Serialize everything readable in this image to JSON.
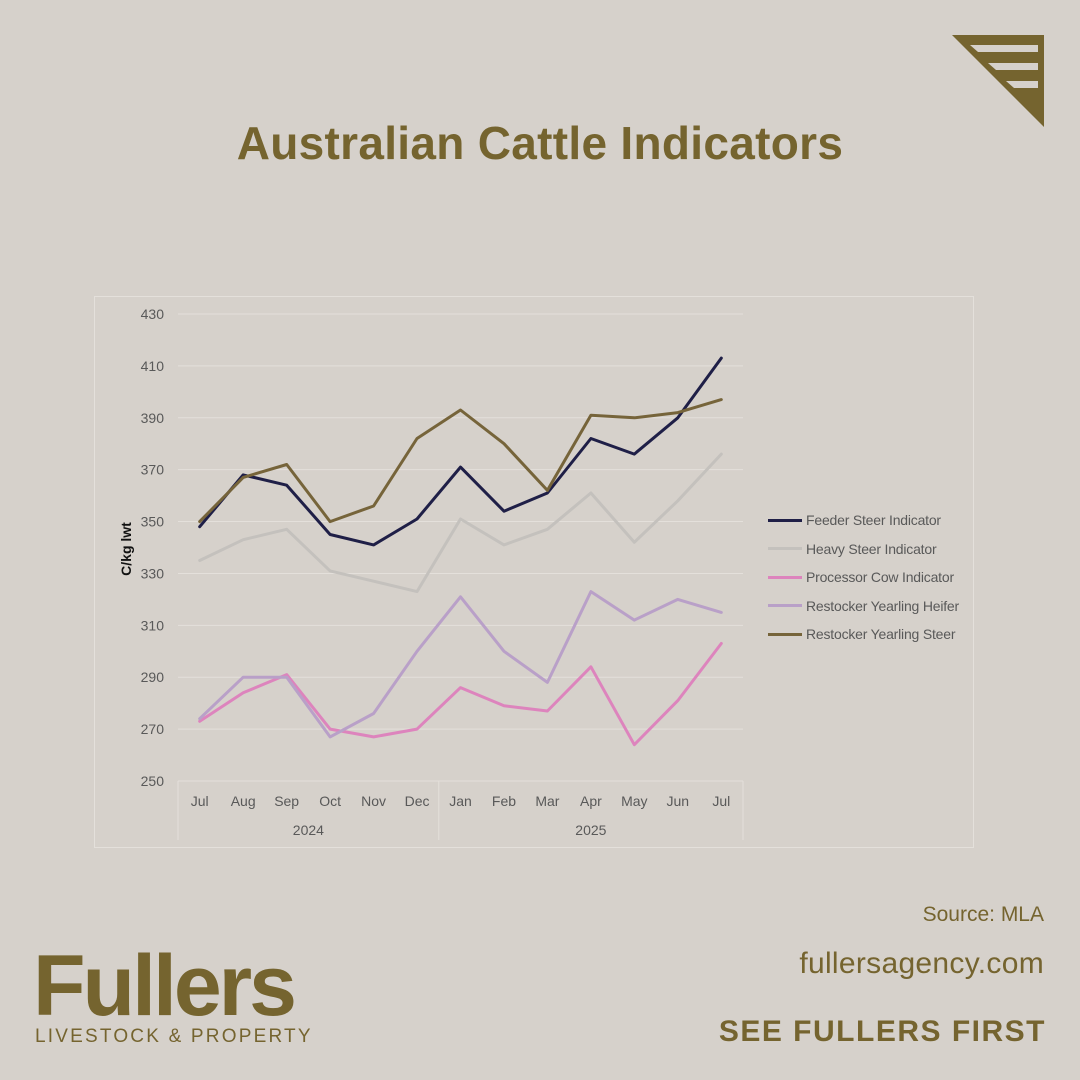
{
  "header": {
    "title": "Australian Cattle Indicators"
  },
  "footer": {
    "source": "Source: MLA",
    "website": "fullersagency.com",
    "tagline": "SEE FULLERS FIRST",
    "brand_name": "Fullers",
    "brand_subtitle": "LIVESTOCK & PROPERTY"
  },
  "colors": {
    "background": "#d6d1cb",
    "brand": "#75642f"
  },
  "chart_data": {
    "type": "line",
    "title": "",
    "xlabel": "",
    "ylabel": "C/kg  lwt",
    "ylim": [
      250,
      430
    ],
    "yticks": [
      "250",
      "270",
      "290",
      "310",
      "330",
      "350",
      "370",
      "390",
      "410",
      "430"
    ],
    "categories": [
      "Jul",
      "Aug",
      "Sep",
      "Oct",
      "Nov",
      "Dec",
      "Jan",
      "Feb",
      "Mar",
      "Apr",
      "May",
      "Jun",
      "Jul"
    ],
    "year_groups": [
      {
        "label": "2024",
        "span": 6
      },
      {
        "label": "2025",
        "span": 7
      }
    ],
    "grid": true,
    "legend_position": "right",
    "series": [
      {
        "name": "Feeder Steer Indicator",
        "color": "#1f1f47",
        "values": [
          348,
          368,
          364,
          345,
          341,
          351,
          371,
          354,
          361,
          382,
          376,
          390,
          413
        ]
      },
      {
        "name": "Heavy Steer Indicator",
        "color": "#c4c1bd",
        "values": [
          335,
          343,
          347,
          331,
          327,
          323,
          351,
          341,
          347,
          361,
          342,
          358,
          376
        ]
      },
      {
        "name": "Processor Cow Indicator",
        "color": "#dd84bd",
        "values": [
          273,
          284,
          291,
          270,
          267,
          270,
          286,
          279,
          277,
          294,
          264,
          281,
          303
        ]
      },
      {
        "name": "Restocker Yearling Heifer",
        "color": "#b9a0c8",
        "values": [
          274,
          290,
          290,
          267,
          276,
          300,
          321,
          300,
          288,
          323,
          312,
          320,
          315
        ]
      },
      {
        "name": "Restocker Yearling Steer",
        "color": "#76643a",
        "values": [
          350,
          367,
          372,
          350,
          356,
          382,
          393,
          380,
          362,
          391,
          390,
          392,
          397
        ]
      }
    ]
  }
}
